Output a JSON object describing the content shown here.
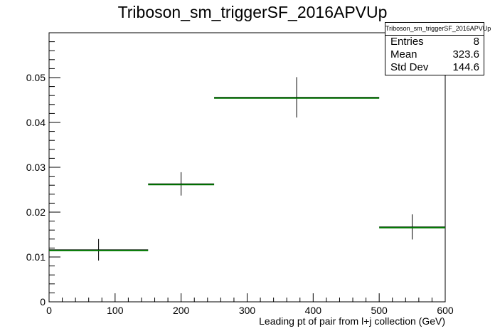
{
  "chart_data": {
    "type": "histogram",
    "title": "Triboson_sm_triggerSF_2016APVUp",
    "xlabel": "Leading pt of pair from l+j collection (GeV)",
    "ylabel": "",
    "xlim": [
      0,
      600
    ],
    "ylim": [
      0,
      0.06
    ],
    "x_ticks": [
      "0",
      "100",
      "200",
      "300",
      "400",
      "500",
      "600"
    ],
    "y_ticks": [
      "0",
      "0.01",
      "0.02",
      "0.03",
      "0.04",
      "0.05"
    ],
    "bins": [
      {
        "low": 0,
        "high": 150,
        "value": 0.0116,
        "error": 0.0024
      },
      {
        "low": 150,
        "high": 250,
        "value": 0.0263,
        "error": 0.0026
      },
      {
        "low": 250,
        "high": 500,
        "value": 0.0456,
        "error": 0.0045
      },
      {
        "low": 500,
        "high": 600,
        "value": 0.0167,
        "error": 0.0028
      }
    ],
    "line_color": "#007700",
    "error_color": "#000000",
    "stats": {
      "title": "Triboson_sm_triggerSF_2016APVUp",
      "rows": [
        {
          "label": "Entries",
          "value": "8"
        },
        {
          "label": "Mean",
          "value": "323.6"
        },
        {
          "label": "Std Dev",
          "value": "144.6"
        }
      ]
    }
  }
}
